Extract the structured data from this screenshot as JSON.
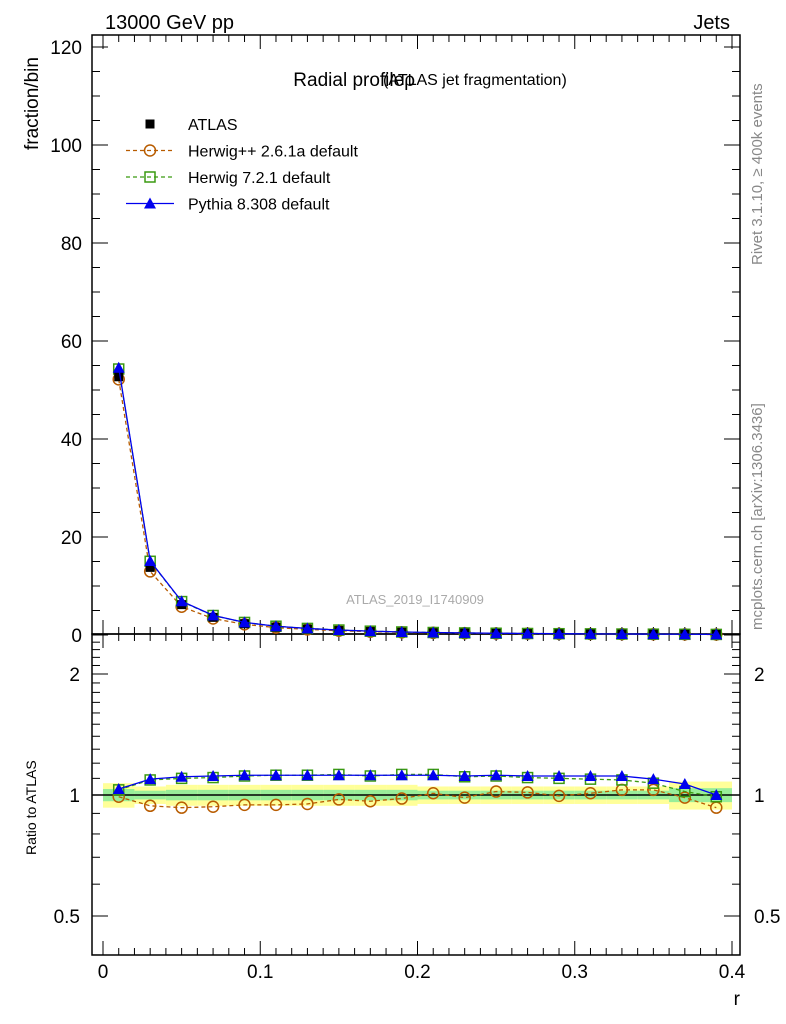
{
  "header": {
    "left": "13000 GeV pp",
    "right": "Jets"
  },
  "side": {
    "rivet": "Rivet 3.1.10, ≥ 400k events",
    "mcplots": "mcplots.cern.ch [arXiv:1306.3436]"
  },
  "chart_data": {
    "type": "line",
    "title": "Radial profileρ",
    "subtitle": "(ATLAS jet fragmentation)",
    "analysis": "ATLAS_2019_I1740909",
    "xlabel": "r",
    "ylabel": "fraction/bin",
    "ratio_ylabel": "Ratio to ATLAS",
    "xlim": [
      -0.002,
      0.402
    ],
    "ylim": [
      0,
      122
    ],
    "ratio_ylim": [
      0.4,
      2.4
    ],
    "xticks": [
      "0",
      "0.1",
      "0.2",
      "0.3",
      "0.4"
    ],
    "yticks": [
      "0",
      "20",
      "40",
      "60",
      "80",
      "100",
      "120"
    ],
    "ratio_yticks": [
      "0.5",
      "1",
      "2"
    ],
    "x": [
      0.01,
      0.03,
      0.05,
      0.07,
      0.09,
      0.11,
      0.13,
      0.15,
      0.17,
      0.19,
      0.21,
      0.23,
      0.25,
      0.27,
      0.29,
      0.31,
      0.33,
      0.35,
      0.37,
      0.39
    ],
    "atlas": [
      52.7,
      13.8,
      6.2,
      3.6,
      2.3,
      1.6,
      1.2,
      0.9,
      0.7,
      0.55,
      0.45,
      0.38,
      0.32,
      0.28,
      0.24,
      0.21,
      0.18,
      0.16,
      0.14,
      0.12
    ],
    "band_outer": [
      0.07,
      0.05,
      0.06,
      0.06,
      0.06,
      0.06,
      0.06,
      0.06,
      0.06,
      0.06,
      0.05,
      0.05,
      0.05,
      0.05,
      0.05,
      0.05,
      0.05,
      0.05,
      0.08,
      0.08
    ],
    "band_inner": [
      0.035,
      0.025,
      0.03,
      0.03,
      0.03,
      0.03,
      0.03,
      0.03,
      0.03,
      0.03,
      0.025,
      0.025,
      0.025,
      0.025,
      0.025,
      0.025,
      0.025,
      0.025,
      0.04,
      0.04
    ],
    "series": [
      {
        "name": "ATLAS",
        "color": "#000000",
        "marker": "square-filled"
      },
      {
        "name": "Herwig++ 2.6.1a default",
        "color": "#b85c00",
        "marker": "circle",
        "dash": "4,3",
        "ratio": [
          0.99,
          0.94,
          0.93,
          0.935,
          0.945,
          0.945,
          0.95,
          0.975,
          0.965,
          0.98,
          1.01,
          0.985,
          1.02,
          1.015,
          0.995,
          1.01,
          1.03,
          1.03,
          0.985,
          0.93
        ]
      },
      {
        "name": "Herwig 7.2.1 default",
        "color": "#3a9a10",
        "marker": "square",
        "dash": "4,3",
        "ratio": [
          1.03,
          1.09,
          1.1,
          1.105,
          1.115,
          1.12,
          1.12,
          1.125,
          1.115,
          1.125,
          1.125,
          1.11,
          1.115,
          1.105,
          1.1,
          1.095,
          1.09,
          1.07,
          1.02,
          0.99
        ]
      },
      {
        "name": "Pythia 8.308 default",
        "color": "#0000ee",
        "marker": "triangle",
        "ratio": [
          1.035,
          1.095,
          1.11,
          1.115,
          1.12,
          1.12,
          1.12,
          1.12,
          1.12,
          1.12,
          1.12,
          1.115,
          1.12,
          1.115,
          1.115,
          1.115,
          1.115,
          1.095,
          1.065,
          1.0
        ]
      }
    ]
  }
}
